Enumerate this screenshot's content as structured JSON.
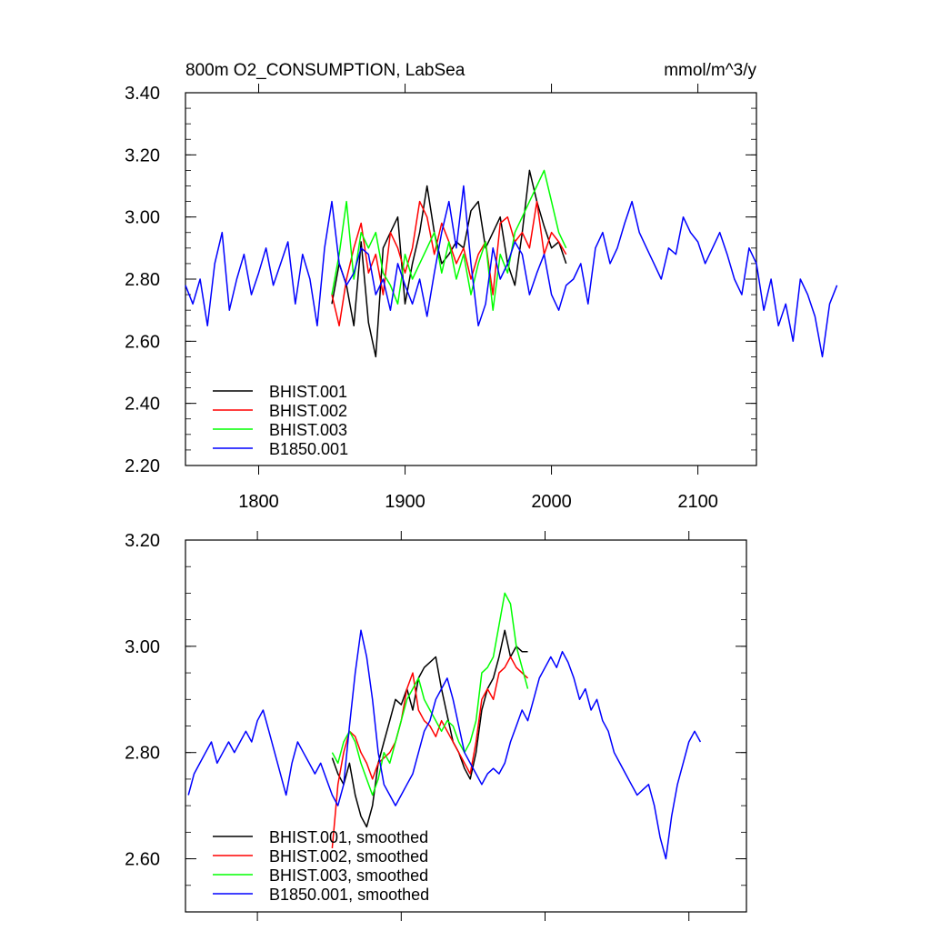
{
  "figure": {
    "title": "800m O2_CONSUMPTION, LabSea",
    "units": "mmol/m^3/y"
  },
  "chart_data": [
    {
      "type": "line",
      "title": "800m O2_CONSUMPTION, LabSea",
      "units": "mmol/m^3/y",
      "xlim": [
        1750,
        2140
      ],
      "ylim": [
        2.2,
        3.4
      ],
      "x_ticks": [
        1800,
        1900,
        2000,
        2100
      ],
      "x_tick_labels": [
        "1800",
        "1900",
        "2000",
        "2100"
      ],
      "y_ticks": [
        2.2,
        2.4,
        2.6,
        2.8,
        3.0,
        3.2,
        3.4
      ],
      "y_tick_labels": [
        "2.20",
        "2.40",
        "2.60",
        "2.80",
        "3.00",
        "3.20",
        "3.40"
      ],
      "legend_position": "bottom-left",
      "grid": false,
      "series": [
        {
          "name": "BHIST.001",
          "color": "#000000",
          "x_start": 1850,
          "x_step": 5,
          "values": [
            2.72,
            2.85,
            2.78,
            2.65,
            2.92,
            2.66,
            2.55,
            2.9,
            2.95,
            3.0,
            2.72,
            2.85,
            2.95,
            3.1,
            2.95,
            2.85,
            2.88,
            2.92,
            2.9,
            3.02,
            3.05,
            2.9,
            2.95,
            3.0,
            2.85,
            2.78,
            2.95,
            3.15,
            3.05,
            2.97,
            2.9,
            2.92,
            2.85
          ]
        },
        {
          "name": "BHIST.002",
          "color": "#ff0000",
          "x_start": 1850,
          "x_step": 5,
          "values": [
            2.75,
            2.65,
            2.8,
            2.9,
            2.98,
            2.82,
            2.88,
            2.75,
            2.95,
            2.9,
            2.82,
            2.9,
            3.05,
            3.0,
            2.88,
            2.98,
            2.92,
            2.85,
            2.9,
            2.8,
            2.88,
            2.92,
            2.75,
            2.98,
            3.0,
            2.92,
            2.95,
            2.9,
            3.05,
            2.88,
            2.95,
            2.92,
            2.88
          ]
        },
        {
          "name": "BHIST.003",
          "color": "#00ff00",
          "x_start": 1850,
          "x_step": 5,
          "values": [
            2.75,
            2.88,
            3.05,
            2.8,
            2.95,
            2.9,
            2.95,
            2.82,
            2.78,
            2.72,
            2.88,
            2.8,
            2.85,
            2.9,
            2.95,
            2.82,
            2.92,
            2.8,
            2.88,
            2.75,
            2.85,
            2.92,
            2.7,
            2.88,
            2.82,
            2.95,
            3.0,
            3.05,
            3.1,
            3.15,
            3.05,
            2.95,
            2.9
          ]
        },
        {
          "name": "B1850.001",
          "color": "#0000ff",
          "x_start": 1750,
          "x_step": 5,
          "values": [
            2.78,
            2.72,
            2.8,
            2.65,
            2.85,
            2.95,
            2.7,
            2.8,
            2.88,
            2.75,
            2.82,
            2.9,
            2.78,
            2.85,
            2.92,
            2.72,
            2.88,
            2.8,
            2.65,
            2.9,
            3.05,
            2.85,
            2.78,
            2.82,
            2.9,
            2.88,
            2.75,
            2.8,
            2.7,
            2.85,
            2.78,
            2.72,
            2.8,
            2.68,
            2.82,
            2.95,
            3.05,
            2.9,
            3.1,
            2.85,
            2.65,
            2.72,
            2.9,
            2.8,
            2.85,
            2.92,
            2.88,
            2.75,
            2.82,
            2.88,
            2.75,
            2.7,
            2.78,
            2.8,
            2.85,
            2.72,
            2.9,
            2.95,
            2.85,
            2.9,
            2.98,
            3.05,
            2.95,
            2.9,
            2.85,
            2.8,
            2.9,
            2.88,
            3.0,
            2.95,
            2.92,
            2.85,
            2.9,
            2.95,
            2.88,
            2.8,
            2.75,
            2.9,
            2.85,
            2.7,
            2.8,
            2.65,
            2.72,
            2.6,
            2.8,
            2.75,
            2.68,
            2.55,
            2.72,
            2.78
          ]
        }
      ]
    },
    {
      "type": "line",
      "xlim": [
        1750,
        2140
      ],
      "ylim": [
        2.5,
        3.2
      ],
      "x_ticks": [
        1800,
        1900,
        2000,
        2100
      ],
      "y_ticks": [
        2.6,
        2.8,
        3.0,
        3.2
      ],
      "y_tick_labels": [
        "2.60",
        "2.80",
        "3.00",
        "3.20"
      ],
      "legend_position": "bottom-left",
      "grid": false,
      "series": [
        {
          "name": "BHIST.001, smoothed",
          "color": "#000000",
          "x_start": 1852,
          "x_step": 4,
          "values": [
            2.79,
            2.76,
            2.74,
            2.78,
            2.72,
            2.68,
            2.66,
            2.7,
            2.78,
            2.82,
            2.86,
            2.9,
            2.89,
            2.92,
            2.88,
            2.94,
            2.96,
            2.97,
            2.98,
            2.92,
            2.87,
            2.82,
            2.8,
            2.77,
            2.75,
            2.8,
            2.88,
            2.92,
            2.94,
            2.98,
            3.03,
            2.98,
            3.0,
            2.99,
            2.99
          ]
        },
        {
          "name": "BHIST.002, smoothed",
          "color": "#ff0000",
          "x_start": 1852,
          "x_step": 4,
          "values": [
            2.62,
            2.74,
            2.8,
            2.84,
            2.83,
            2.8,
            2.78,
            2.75,
            2.78,
            2.79,
            2.8,
            2.82,
            2.86,
            2.92,
            2.95,
            2.88,
            2.86,
            2.85,
            2.83,
            2.86,
            2.84,
            2.82,
            2.8,
            2.78,
            2.76,
            2.82,
            2.9,
            2.92,
            2.9,
            2.95,
            2.96,
            2.98,
            2.96,
            2.95,
            2.94
          ]
        },
        {
          "name": "BHIST.003, smoothed",
          "color": "#00ff00",
          "x_start": 1852,
          "x_step": 4,
          "values": [
            2.8,
            2.78,
            2.82,
            2.84,
            2.82,
            2.78,
            2.75,
            2.72,
            2.75,
            2.8,
            2.78,
            2.82,
            2.86,
            2.9,
            2.92,
            2.94,
            2.9,
            2.88,
            2.86,
            2.84,
            2.86,
            2.85,
            2.82,
            2.8,
            2.82,
            2.86,
            2.95,
            2.96,
            2.98,
            3.04,
            3.1,
            3.08,
            3.0,
            2.96,
            2.92
          ]
        },
        {
          "name": "B1850.001, smoothed",
          "color": "#0000ff",
          "x_start": 1752,
          "x_step": 4,
          "values": [
            2.72,
            2.76,
            2.78,
            2.8,
            2.82,
            2.78,
            2.8,
            2.82,
            2.8,
            2.82,
            2.84,
            2.82,
            2.86,
            2.88,
            2.84,
            2.8,
            2.76,
            2.72,
            2.78,
            2.82,
            2.8,
            2.78,
            2.76,
            2.78,
            2.75,
            2.72,
            2.7,
            2.74,
            2.85,
            2.95,
            3.03,
            2.98,
            2.9,
            2.8,
            2.74,
            2.72,
            2.7,
            2.72,
            2.74,
            2.76,
            2.8,
            2.84,
            2.86,
            2.9,
            2.92,
            2.94,
            2.9,
            2.85,
            2.8,
            2.78,
            2.76,
            2.74,
            2.76,
            2.77,
            2.76,
            2.78,
            2.82,
            2.85,
            2.88,
            2.86,
            2.9,
            2.94,
            2.96,
            2.98,
            2.96,
            2.99,
            2.97,
            2.94,
            2.9,
            2.92,
            2.88,
            2.9,
            2.86,
            2.84,
            2.8,
            2.78,
            2.76,
            2.74,
            2.72,
            2.73,
            2.74,
            2.7,
            2.64,
            2.6,
            2.68,
            2.74,
            2.78,
            2.82,
            2.84,
            2.82
          ]
        }
      ]
    }
  ]
}
